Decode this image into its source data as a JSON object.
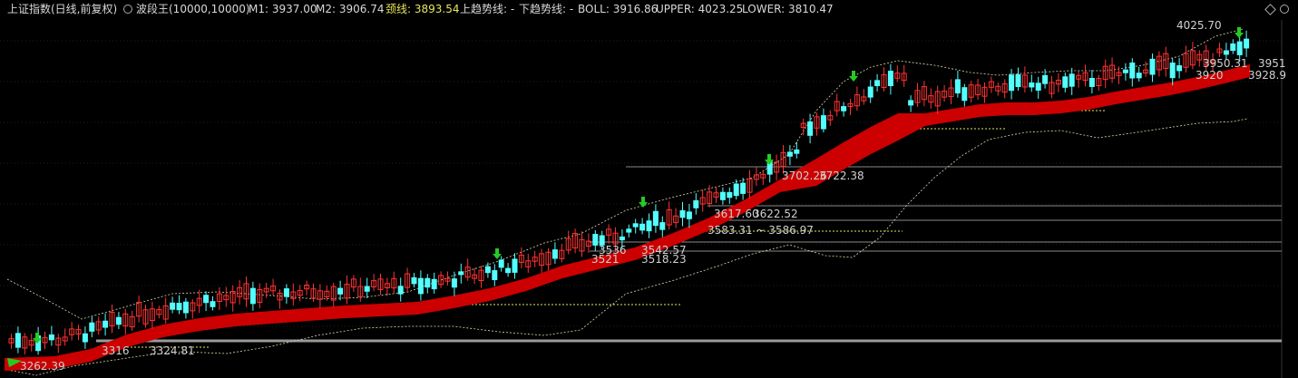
{
  "header": {
    "index_name": "上证指数(日线,前复权)",
    "indicator_name": "波段王(10000,10000)",
    "m1_label": "M1: 3937.00",
    "m2_label": "M2: 3906.74",
    "neck_label": "颈线: 3893.54",
    "up_trend_label": "上趋势线: -",
    "down_trend_label": "下趋势线: -",
    "boll_label": "BOLL: 3916.86",
    "upper_label": "UPPER: 4023.25",
    "lower_label": "LOWER: 3810.47"
  },
  "colors": {
    "up": "#ff3232",
    "down": "#54ffff",
    "band": "#cc0000",
    "arrow": "#22cc22",
    "neck": "#e6e65a"
  },
  "chart_data": {
    "type": "candlestick",
    "price_labels": {
      "high": "4025.70",
      "m1": "3951",
      "m2": "3950.31",
      "r1": "3928.9",
      "r2": "3920",
      "z1a": "3702.26",
      "z1b": "3722.38",
      "z2a": "3617.60",
      "z2b": "3622.52",
      "z3": "3583.31 ~ 3586.97",
      "z4a": "3536",
      "z4b": "3542.57",
      "z5a": "3521",
      "z5b": "3518.23",
      "z6a": "3316",
      "z6b": "3324.81",
      "low": "3262.39"
    }
  }
}
